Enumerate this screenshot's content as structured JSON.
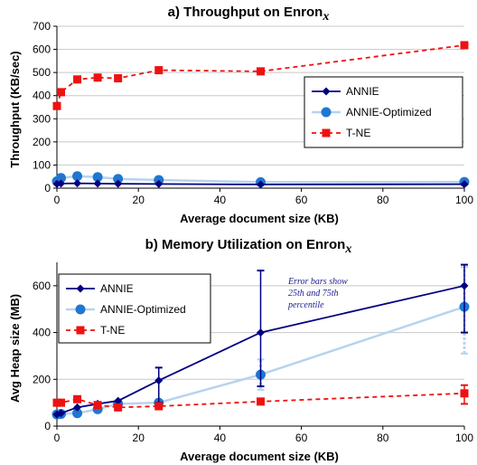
{
  "chart_data": [
    {
      "type": "line",
      "title": "a) Throughput on Enron",
      "title_subscript": "x",
      "xlabel": "Average document size (KB)",
      "ylabel": "Throughput (KB/sec)",
      "xlim": [
        0,
        100
      ],
      "ylim": [
        0,
        700
      ],
      "xticks": [
        "0",
        "20",
        "40",
        "60",
        "80",
        "100"
      ],
      "yticks": [
        "0",
        "100",
        "200",
        "300",
        "400",
        "500",
        "600",
        "700"
      ],
      "grid": true,
      "legend_position": "right",
      "series": [
        {
          "name": "ANNIE",
          "color": "#000080",
          "marker": "diamond",
          "style": "solid",
          "x": [
            0,
            1,
            5,
            10,
            15,
            25,
            50,
            100
          ],
          "y": [
            18,
            20,
            21,
            20,
            19,
            18,
            16,
            17
          ]
        },
        {
          "name": "ANNIE-Optimized",
          "color": "#b7d3ee",
          "marker": "circle",
          "marker_color": "#1f77d0",
          "style": "solid",
          "x": [
            0,
            1,
            5,
            10,
            15,
            25,
            50,
            100
          ],
          "y": [
            30,
            44,
            52,
            48,
            40,
            35,
            26,
            27
          ]
        },
        {
          "name": "T-NE",
          "color": "#ee1111",
          "marker": "square",
          "style": "dashed",
          "x": [
            0,
            1,
            5,
            10,
            15,
            25,
            50,
            100
          ],
          "y": [
            355,
            415,
            470,
            478,
            475,
            510,
            505,
            618
          ]
        }
      ]
    },
    {
      "type": "line",
      "title": "b) Memory Utilization on Enron",
      "title_subscript": "x",
      "xlabel": "Average document size (KB)",
      "ylabel": "Avg Heap size (MB)",
      "xlim": [
        0,
        100
      ],
      "ylim": [
        0,
        700
      ],
      "xticks": [
        "0",
        "20",
        "40",
        "60",
        "80",
        "100"
      ],
      "yticks": [
        "0",
        "200",
        "400",
        "600"
      ],
      "grid": true,
      "legend_position": "top-left",
      "annotation": [
        "Error bars show",
        "25th and 75th",
        "percentile"
      ],
      "series": [
        {
          "name": "ANNIE",
          "color": "#000080",
          "marker": "diamond",
          "style": "solid",
          "x": [
            0,
            1,
            5,
            10,
            15,
            25,
            50,
            100
          ],
          "y": [
            50,
            55,
            80,
            95,
            108,
            195,
            400,
            600
          ],
          "error_low": [
            null,
            null,
            null,
            null,
            null,
            100,
            170,
            400
          ],
          "error_high": [
            null,
            null,
            null,
            null,
            null,
            250,
            665,
            690
          ]
        },
        {
          "name": "ANNIE-Optimized",
          "color": "#b7d3ee",
          "marker": "circle",
          "marker_color": "#1f77d0",
          "style": "solid",
          "x": [
            0,
            1,
            5,
            10,
            15,
            25,
            50,
            100
          ],
          "y": [
            50,
            52,
            55,
            72,
            95,
            100,
            220,
            510
          ],
          "error_low": [
            null,
            null,
            null,
            null,
            null,
            null,
            155,
            310
          ],
          "error_high": [
            null,
            null,
            null,
            null,
            null,
            null,
            285,
            680
          ]
        },
        {
          "name": "T-NE",
          "color": "#ee1111",
          "marker": "square",
          "style": "dashed",
          "x": [
            0,
            1,
            5,
            10,
            15,
            25,
            50,
            100
          ],
          "y": [
            100,
            100,
            115,
            90,
            80,
            85,
            105,
            140
          ],
          "error_low": [
            null,
            null,
            null,
            null,
            null,
            null,
            null,
            95
          ],
          "error_high": [
            null,
            null,
            null,
            null,
            null,
            null,
            null,
            175
          ]
        }
      ]
    }
  ]
}
